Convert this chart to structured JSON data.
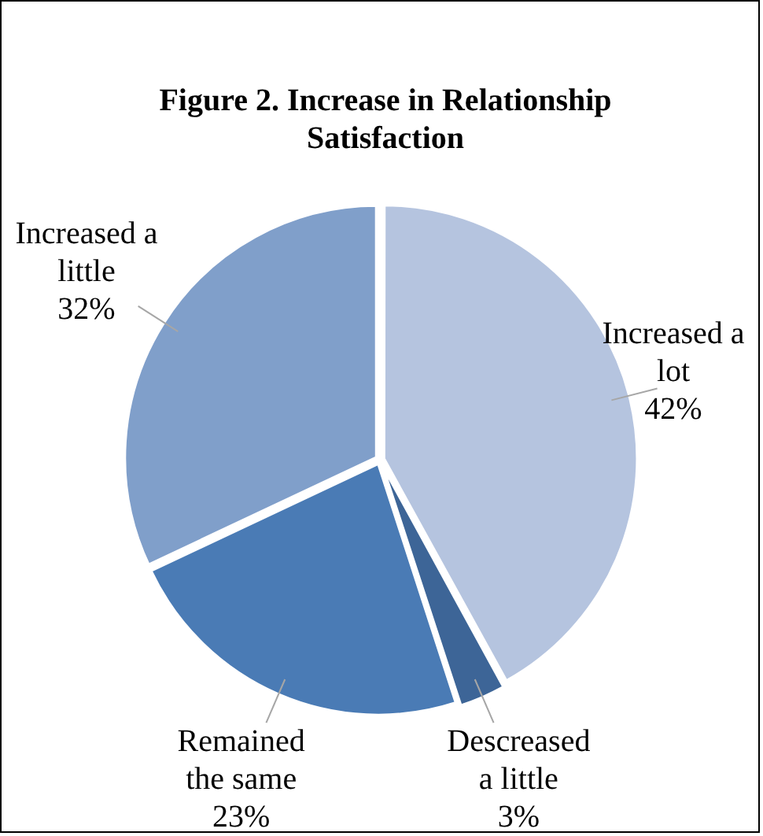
{
  "chart_data": {
    "type": "pie",
    "title": "Figure 2. Increase in Relationship Satisfaction",
    "categories": [
      "Increased a lot",
      "Descreased a little",
      "Remained the same",
      "Increased a little"
    ],
    "values": [
      42,
      3,
      23,
      32
    ],
    "colors": [
      "#b5c4df",
      "#3d6597",
      "#4a7bb5",
      "#809fca"
    ],
    "value_labels": [
      "42%",
      "3%",
      "23%",
      "32%"
    ],
    "legend": false
  }
}
